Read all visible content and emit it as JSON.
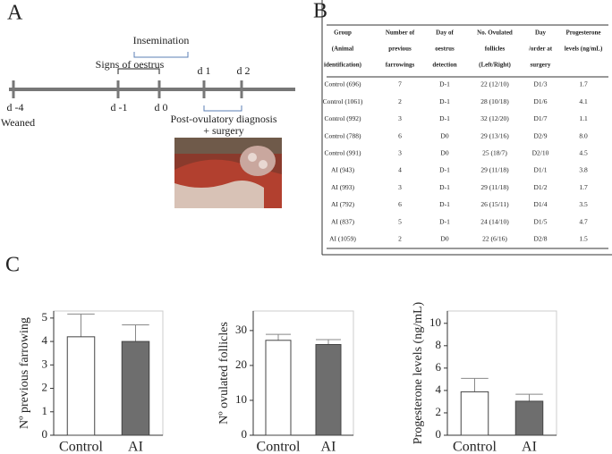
{
  "panel_a": {
    "label": "A",
    "insemination": "Insemination",
    "signs": "Signs of oestrus",
    "d1": "d 1",
    "d2": "d 2",
    "dm4": "d -4",
    "weaned": "Weaned",
    "dm1": "d -1",
    "d0": "d 0",
    "diagnosis": "Post-ovulatory diagnosis",
    "surgery": "+ surgery"
  },
  "panel_b": {
    "label": "B",
    "table": {
      "header": [
        [
          "Group",
          "(Animal",
          "identification)"
        ],
        [
          "Number of",
          "previous",
          "farrowings"
        ],
        [
          "Day of",
          "oestrus",
          "detection"
        ],
        [
          "No. Ovulated",
          "follicles",
          "(Left/Right)"
        ],
        [
          "Day",
          "/order at",
          "surgery"
        ],
        [
          "Progesterone",
          "levels (ng/mL)"
        ]
      ],
      "rows": [
        [
          "Control (696)",
          "7",
          "D-1",
          "22 (12/10)",
          "D1/3",
          "1.7"
        ],
        [
          "Control (1061)",
          "2",
          "D-1",
          "28 (10/18)",
          "D1/6",
          "4.1"
        ],
        [
          "Control (992)",
          "3",
          "D-1",
          "32 (12/20)",
          "D1/7",
          "1.1"
        ],
        [
          "Control (788)",
          "6",
          "D0",
          "29 (13/16)",
          "D2/9",
          "8.0"
        ],
        [
          "Control (991)",
          "3",
          "D0",
          "25 (18/7)",
          "D2/10",
          "4.5"
        ],
        [
          "AI (943)",
          "4",
          "D-1",
          "29 (11/18)",
          "D1/1",
          "3.8"
        ],
        [
          "AI (993)",
          "3",
          "D-1",
          "29 (11/18)",
          "D1/2",
          "1.7"
        ],
        [
          "AI (792)",
          "6",
          "D-1",
          "26 (15/11)",
          "D1/4",
          "3.5"
        ],
        [
          "AI (837)",
          "5",
          "D-1",
          "24 (14/10)",
          "D1/5",
          "4.7"
        ],
        [
          "AI (1059)",
          "2",
          "D0",
          "22 (6/16)",
          "D2/8",
          "1.5"
        ]
      ]
    }
  },
  "panel_c": {
    "label": "C"
  },
  "chart_data": [
    {
      "type": "bar",
      "ylabel": "Nº previous farrowing",
      "categories": [
        "Control",
        "AI"
      ],
      "values": [
        4.2,
        4.0
      ],
      "errors": [
        0.97,
        0.71
      ],
      "colors": [
        "#ffffff",
        "#6e6e6e"
      ],
      "ylim": [
        0,
        5.3
      ],
      "yticks": [
        0,
        1,
        2,
        3,
        4,
        5
      ]
    },
    {
      "type": "bar",
      "ylabel": "Nº ovulated follicles",
      "categories": [
        "Control",
        "AI"
      ],
      "values": [
        27.2,
        26.0
      ],
      "errors": [
        1.7,
        1.4
      ],
      "colors": [
        "#ffffff",
        "#6e6e6e"
      ],
      "ylim": [
        0,
        35.6
      ],
      "yticks": [
        0,
        10,
        20,
        30
      ]
    },
    {
      "type": "bar",
      "ylabel": "Progesterone levels (ng/mL)",
      "categories": [
        "Control",
        "AI"
      ],
      "values": [
        3.88,
        3.04
      ],
      "errors": [
        1.2,
        0.62
      ],
      "colors": [
        "#ffffff",
        "#6e6e6e"
      ],
      "ylim": [
        0,
        11.1
      ],
      "yticks": [
        0,
        2,
        4,
        6,
        8,
        10
      ]
    }
  ]
}
